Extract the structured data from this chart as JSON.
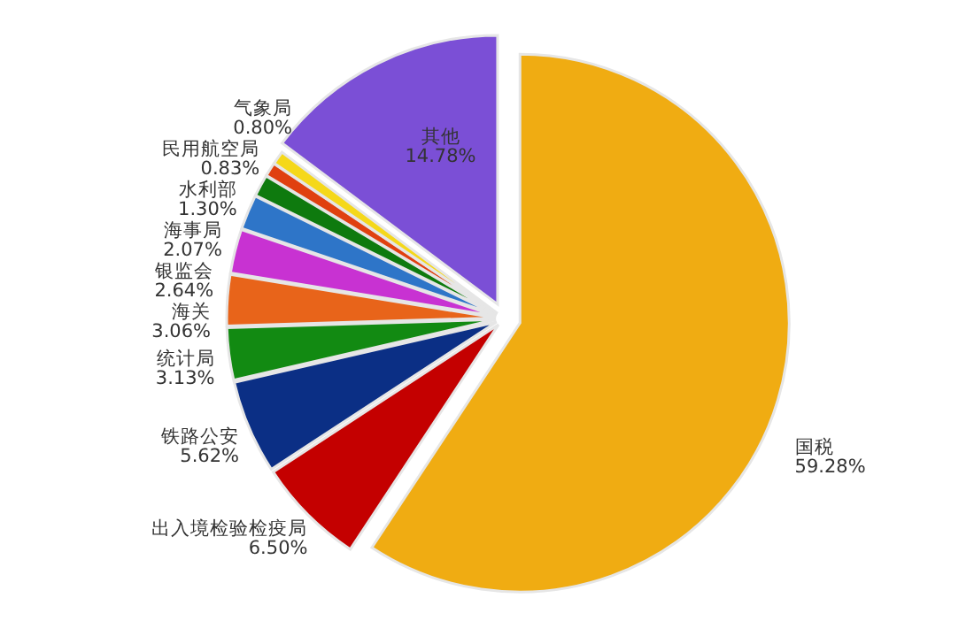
{
  "chart_data": {
    "type": "pie",
    "categories": [
      "国税",
      "出入境检验检疫局",
      "铁路公安",
      "统计局",
      "海关",
      "银监会",
      "海事局",
      "水利部",
      "民用航空局",
      "气象局",
      "其他"
    ],
    "values": [
      59.28,
      6.5,
      5.62,
      3.13,
      3.06,
      2.64,
      2.07,
      1.3,
      0.83,
      0.8,
      14.78
    ],
    "value_labels": [
      "59.28%",
      "6.50%",
      "5.62%",
      "3.13%",
      "3.06%",
      "2.64%",
      "2.07%",
      "1.30%",
      "0.83%",
      "0.80%",
      "14.78%"
    ],
    "colors": [
      "#f0ac12",
      "#c40000",
      "#0b2f85",
      "#128a12",
      "#e8641a",
      "#c832d2",
      "#2e75c8",
      "#0e7a0e",
      "#e04010",
      "#f5d81a",
      "#7b4fd6"
    ],
    "legend": false
  }
}
